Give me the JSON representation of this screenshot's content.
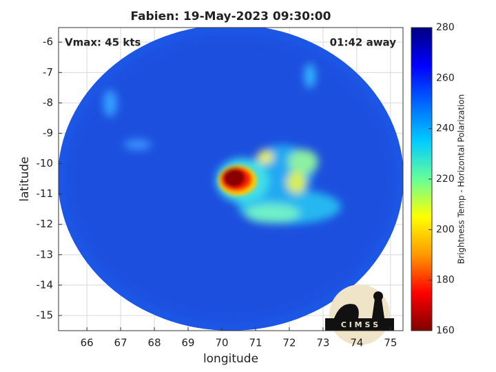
{
  "chart_data": {
    "type": "image",
    "title": "Fabien: 19-May-2023 09:30:00",
    "x_label": "longitude",
    "y_label": "latitude",
    "annotations": [
      "Vmax: 45 kts",
      "01:42 away"
    ],
    "logo_text": "C I M S S",
    "xlim": [
      65.16,
      75.37
    ],
    "xticks": [
      66,
      67,
      68,
      69,
      70,
      71,
      72,
      73,
      74,
      75
    ],
    "ylim": [
      -15.5,
      -5.52
    ],
    "yticks": [
      -6,
      -7,
      -8,
      -9,
      -10,
      -11,
      -12,
      -13,
      -14,
      -15
    ],
    "grid": true,
    "colorbar": {
      "label": "Brightness Temp - Horizontal Polarization",
      "lim": [
        160,
        280
      ],
      "ticks": [
        160,
        180,
        200,
        220,
        240,
        260,
        280
      ],
      "colors": [
        "#7f0000",
        "#ff0000",
        "#ff9900",
        "#ffff00",
        "#66ff99",
        "#00ccff",
        "#0066ff",
        "#0000ff",
        "#000080"
      ]
    }
  }
}
